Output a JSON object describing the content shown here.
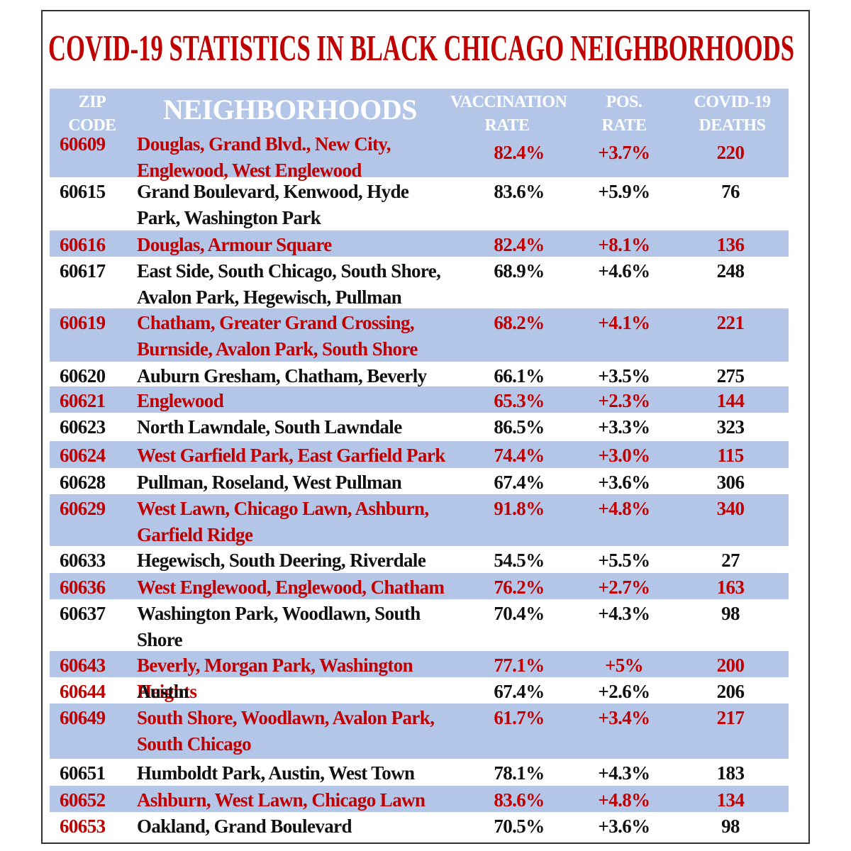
{
  "title": "COVID-19 STATISTICS IN BLACK CHICAGO NEIGHBORHOODS",
  "table": {
    "headers": [
      "ZIP CODE",
      "NEIGHBORHOODS",
      "VACCINATION RATE",
      "POS. RATE",
      "COVID-19 DEATHS"
    ],
    "rows": [
      [
        "60609",
        "Douglas, Grand Blvd., New City, Englewood, West Englewood",
        "82.4%",
        "+3.7%",
        "220"
      ],
      [
        "60615",
        "Grand Boulevard, Kenwood, Hyde Park, Washington Park",
        "83.6%",
        "+5.9%",
        "76"
      ],
      [
        "60616",
        "Douglas, Armour Square",
        "82.4%",
        "+8.1%",
        "136"
      ],
      [
        "60617",
        "East Side, South Chicago, South Shore, Avalon Park, Hegewisch, Pullman",
        "68.9%",
        "+4.6%",
        "248"
      ],
      [
        "60619",
        "Chatham, Greater Grand Crossing, Burnside, Avalon Park, South Shore",
        "68.2%",
        "+4.1%",
        "221"
      ],
      [
        "60620",
        "Auburn Gresham, Chatham, Beverly",
        "66.1%",
        "+3.5%",
        "275"
      ],
      [
        "60621",
        "Englewood",
        "65.3%",
        "+2.3%",
        "144"
      ],
      [
        "60623",
        "North Lawndale, South Lawndale",
        "86.5%",
        "+3.3%",
        "323"
      ],
      [
        "60624",
        "West Garfield Park, East Garfield Park",
        "74.4%",
        "+3.0%",
        "115"
      ],
      [
        "60628",
        "Pullman, Roseland, West Pullman",
        "67.4%",
        "+3.6%",
        "306"
      ],
      [
        "60629",
        "West Lawn, Chicago Lawn, Ashburn, Garfield Ridge",
        "91.8%",
        "+4.8%",
        "340"
      ],
      [
        "60633",
        "Hegewisch, South Deering, Riverdale",
        "54.5%",
        "+5.5%",
        "27"
      ],
      [
        "60636",
        "West Englewood, Englewood, Chatham",
        "76.2%",
        "+2.7%",
        "163"
      ],
      [
        "60637",
        "Washington Park, Woodlawn, South Shore",
        "70.4%",
        "+4.3%",
        "98"
      ],
      [
        "60643",
        "Beverly, Morgan Park, Washington Heights",
        "77.1%",
        "+5%",
        "200"
      ],
      [
        "60644",
        "Austin",
        "67.4%",
        "+2.6%",
        "206"
      ],
      [
        "60649",
        "South Shore, Woodlawn, Avalon Park, South Chicago",
        "61.7%",
        "+3.4%",
        "217"
      ],
      [
        "60651",
        "Humboldt Park, Austin, West Town",
        "78.1%",
        "+4.3%",
        "183"
      ],
      [
        "60652",
        "Ashburn, West Lawn, Chicago Lawn",
        "83.6%",
        "+4.8%",
        "134"
      ],
      [
        "60653",
        "Oakland, Grand Boulevard",
        "70.5%",
        "+3.6%",
        "98"
      ]
    ]
  }
}
